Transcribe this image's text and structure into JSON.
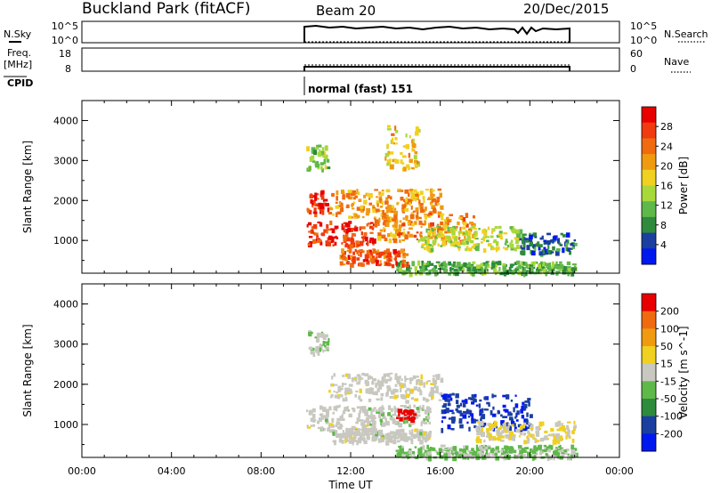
{
  "header": {
    "title": "Buckland Park (fitACF)",
    "beam": "Beam 20",
    "date": "20/Dec/2015"
  },
  "top_panels": {
    "nsky_label": "N.Sky",
    "nsky_ticks": [
      "10^5",
      "10^0"
    ],
    "nsearch_label": "N.Search",
    "freq_label_1": "Freq.",
    "freq_label_2": "[MHz]",
    "freq_ticks": [
      "18",
      "8"
    ],
    "nave_ticks": [
      "60",
      "0"
    ],
    "nave_label": "Nave",
    "cpid_label": "CPID",
    "cpid_value": "normal (fast) 151"
  },
  "colors": {
    "power_scale": [
      "#0018f0",
      "#1a3fa0",
      "#2e8a3c",
      "#5fb84a",
      "#a8d83a",
      "#f0d020",
      "#f09a10",
      "#f06a10",
      "#f03a10",
      "#e80000"
    ],
    "velocity_scale": [
      "#0018f0",
      "#1a3fa0",
      "#2e8a3c",
      "#5fb84a",
      "#c8c8c0",
      "#f0d020",
      "#f09a10",
      "#f06a10",
      "#e80000"
    ]
  },
  "chart_data": [
    {
      "type": "heatmap",
      "title": "",
      "ylabel": "Slant Range [km]",
      "xlabel": "",
      "xlim": [
        "00:00",
        "24:00"
      ],
      "ylim": [
        180,
        4500
      ],
      "yticks": [
        "4000",
        "3000",
        "2000",
        "1000"
      ],
      "colorbar_label": "Power [dB]",
      "colorbar_ticks": [
        "28",
        "24",
        "20",
        "16",
        "12",
        "8",
        "4"
      ],
      "clim": [
        0,
        30
      ],
      "data_window": [
        "10:00",
        "22:00"
      ],
      "echo_bands": [
        {
          "t0": 10.0,
          "t1": 13.0,
          "r0": 900,
          "r1": 1500,
          "level": 26
        },
        {
          "t0": 10.0,
          "t1": 11.0,
          "r0": 1700,
          "r1": 2300,
          "level": 27
        },
        {
          "t0": 11.0,
          "t1": 16.0,
          "r0": 1600,
          "r1": 2300,
          "level": 20
        },
        {
          "t0": 13.0,
          "t1": 17.5,
          "r0": 1000,
          "r1": 1700,
          "level": 21
        },
        {
          "t0": 15.0,
          "t1": 19.5,
          "r0": 800,
          "r1": 1400,
          "level": 14
        },
        {
          "t0": 19.5,
          "t1": 22.0,
          "r0": 700,
          "r1": 1200,
          "level": 6
        },
        {
          "t0": 14.0,
          "t1": 22.0,
          "r0": 200,
          "r1": 500,
          "level": 10
        },
        {
          "t0": 11.5,
          "t1": 14.5,
          "r0": 400,
          "r1": 800,
          "level": 24
        },
        {
          "t0": 10.0,
          "t1": 11.0,
          "r0": 2800,
          "r1": 3400,
          "level": 12
        },
        {
          "t0": 13.5,
          "t1": 15.0,
          "r0": 2800,
          "r1": 3900,
          "level": 18
        }
      ]
    },
    {
      "type": "heatmap",
      "title": "",
      "ylabel": "Slant Range [km]",
      "xlabel": "Time UT",
      "xlim": [
        "00:00",
        "24:00"
      ],
      "xticks": [
        "00:00",
        "04:00",
        "08:00",
        "12:00",
        "16:00",
        "20:00",
        "00:00"
      ],
      "ylim": [
        180,
        4500
      ],
      "yticks": [
        "4000",
        "3000",
        "2000",
        "1000"
      ],
      "colorbar_label": "Velocity [m s^-1]",
      "colorbar_ticks": [
        "200",
        "100",
        "50",
        "15",
        "-15",
        "-50",
        "-100",
        "-200"
      ],
      "clim": [
        -250,
        250
      ],
      "data_window": [
        "10:00",
        "22:00"
      ],
      "echo_bands": [
        {
          "t0": 10.0,
          "t1": 13.0,
          "r0": 900,
          "r1": 1500,
          "level": 0
        },
        {
          "t0": 11.0,
          "t1": 16.0,
          "r0": 1600,
          "r1": 2300,
          "level": 5
        },
        {
          "t0": 13.0,
          "t1": 15.5,
          "r0": 1000,
          "r1": 1500,
          "level": -10
        },
        {
          "t0": 14.0,
          "t1": 14.8,
          "r0": 1150,
          "r1": 1400,
          "level": 230
        },
        {
          "t0": 16.0,
          "t1": 20.0,
          "r0": 900,
          "r1": 1800,
          "level": -180
        },
        {
          "t0": 17.5,
          "t1": 22.0,
          "r0": 600,
          "r1": 1100,
          "level": 30
        },
        {
          "t0": 11.0,
          "t1": 15.5,
          "r0": 600,
          "r1": 900,
          "level": 0
        },
        {
          "t0": 14.0,
          "t1": 22.0,
          "r0": 200,
          "r1": 500,
          "level": -40
        },
        {
          "t0": 10.0,
          "t1": 11.0,
          "r0": 2800,
          "r1": 3400,
          "level": -20
        }
      ]
    }
  ]
}
